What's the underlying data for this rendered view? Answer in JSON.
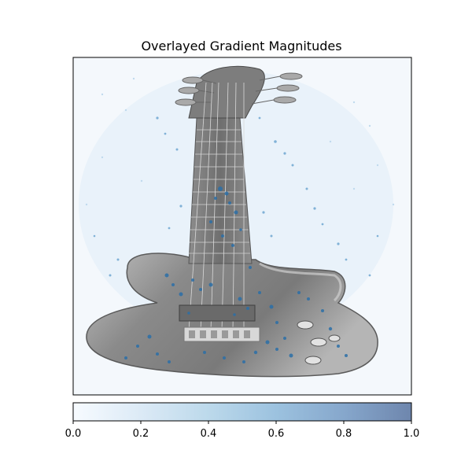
{
  "chart_data": {
    "type": "heatmap",
    "title": "Overlayed Gradient Magnitudes",
    "colormap": "Blues",
    "overlay_opacity": 0.6,
    "xticks_visible": false,
    "yticks_visible": false,
    "colorbar": {
      "orientation": "horizontal",
      "placement": "bottom",
      "range": [
        0.0,
        1.0
      ],
      "ticks": [
        0.0,
        0.2,
        0.4,
        0.6,
        0.8,
        1.0
      ],
      "tick_labels": [
        "0.0",
        "0.2",
        "0.4",
        "0.6",
        "0.8",
        "1.0"
      ]
    },
    "background_image": "grayscale electric guitar"
  }
}
